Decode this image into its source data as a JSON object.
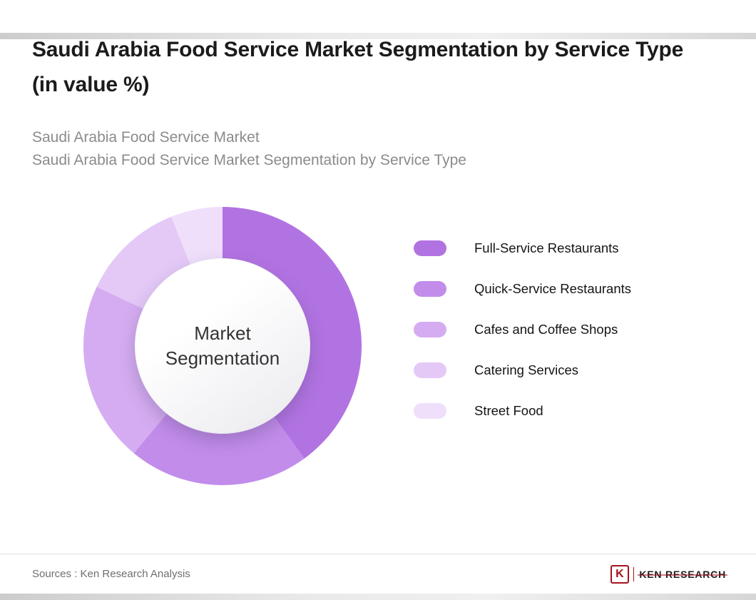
{
  "page": {
    "background": "#ffffff",
    "accent_bar_color": "#d6d6d6"
  },
  "header": {
    "title": "Saudi Arabia Food Service Market Segmentation by Service Type (in value %)",
    "subtitles": [
      "Saudi Arabia Food Service Market",
      "Saudi Arabia Food Service Market Segmentation by Service Type"
    ]
  },
  "chart_data": {
    "type": "pie",
    "donut": true,
    "center_label": "Market Segmentation",
    "categories": [
      "Full-Service Restaurants",
      "Quick-Service Restaurants",
      "Cafes and Coffee Shops",
      "Catering Services",
      "Street Food"
    ],
    "values": [
      40,
      21,
      21,
      12,
      6
    ],
    "colors": [
      "#b273e2",
      "#c28ceb",
      "#d5acf1",
      "#e4c9f7",
      "#efdffb"
    ],
    "legend_position": "right",
    "start_angle_deg": 0,
    "direction": "clockwise"
  },
  "footer": {
    "sources": "Sources : Ken Research Analysis",
    "logo": {
      "letter": "K",
      "text": "KEN RESEARCH",
      "color": "#a6121f"
    }
  }
}
